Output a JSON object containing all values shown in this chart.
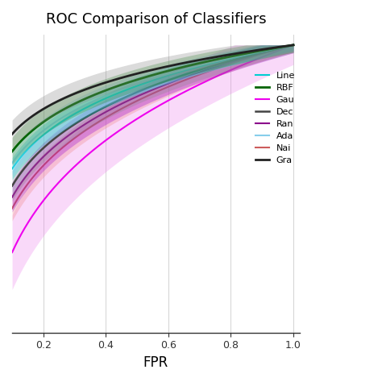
{
  "title": "ROC Comparison of Classifiers",
  "xlabel": "FPR",
  "classifiers": [
    {
      "name": "Line",
      "auc": 0.895,
      "spread": 0.022,
      "line_color": "#00CED1",
      "fill_color": "#00CED1",
      "lw": 1.5,
      "zorder": 7
    },
    {
      "name": "RBF",
      "auc": 0.91,
      "spread": 0.028,
      "line_color": "#006400",
      "fill_color": "#228B22",
      "lw": 2.0,
      "zorder": 9
    },
    {
      "name": "Gau",
      "auc": 0.82,
      "spread": 0.075,
      "line_color": "#EE00EE",
      "fill_color": "#EE82EE",
      "lw": 1.5,
      "zorder": 3
    },
    {
      "name": "Dec",
      "auc": 0.88,
      "spread": 0.03,
      "line_color": "#444444",
      "fill_color": "#888888",
      "lw": 1.8,
      "zorder": 6
    },
    {
      "name": "Ran",
      "auc": 0.87,
      "spread": 0.03,
      "line_color": "#8B008B",
      "fill_color": "#9400D3",
      "lw": 1.5,
      "zorder": 5
    },
    {
      "name": "Ada",
      "auc": 0.9,
      "spread": 0.025,
      "line_color": "#87CEEB",
      "fill_color": "#87CEFA",
      "lw": 1.5,
      "zorder": 8
    },
    {
      "name": "Nai",
      "auc": 0.86,
      "spread": 0.025,
      "line_color": "#CD5C5C",
      "fill_color": "#F08080",
      "lw": 1.5,
      "zorder": 4
    },
    {
      "name": "Gra",
      "auc": 0.925,
      "spread": 0.028,
      "line_color": "#222222",
      "fill_color": "#888888",
      "lw": 2.0,
      "zorder": 10
    }
  ],
  "xticks": [
    0.2,
    0.4,
    0.6,
    0.8,
    1.0
  ],
  "xlim": [
    0.1,
    1.02
  ],
  "ylim": [
    0.45,
    1.02
  ],
  "background": "#ffffff",
  "grid_color": "#cccccc",
  "title_fontsize": 13,
  "xlabel_fontsize": 12
}
